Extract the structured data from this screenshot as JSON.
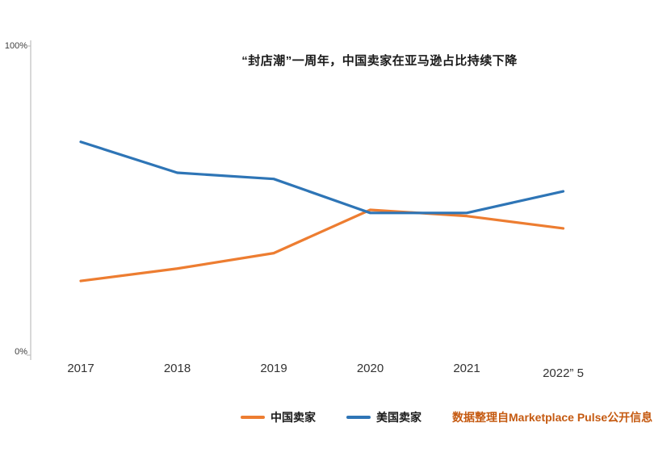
{
  "chart_data": {
    "type": "line",
    "title": "“封店潮”一周年，中国卖家在亚马逊占比持续下降",
    "categories": [
      "2017",
      "2018",
      "2019",
      "2020",
      "2021",
      "2022” 5"
    ],
    "series": [
      {
        "name": "中国卖家",
        "color": "#ED7D31",
        "values": [
          24,
          28,
          33,
          47,
          45,
          41
        ]
      },
      {
        "name": "美国卖家",
        "color": "#2E75B6",
        "values": [
          69,
          59,
          57,
          46,
          46,
          53
        ]
      }
    ],
    "ylim": [
      0,
      100
    ],
    "y_tick_labels": [
      "100%",
      "0%"
    ],
    "grid": false,
    "legend_position": "bottom",
    "xlabel": "",
    "ylabel": "",
    "source_note": "数据整理自Marketplace Pulse公开信息"
  },
  "colors": {
    "axis": "#BFBFBF",
    "tick_text": "#404040",
    "source_text": "#C55A11"
  }
}
